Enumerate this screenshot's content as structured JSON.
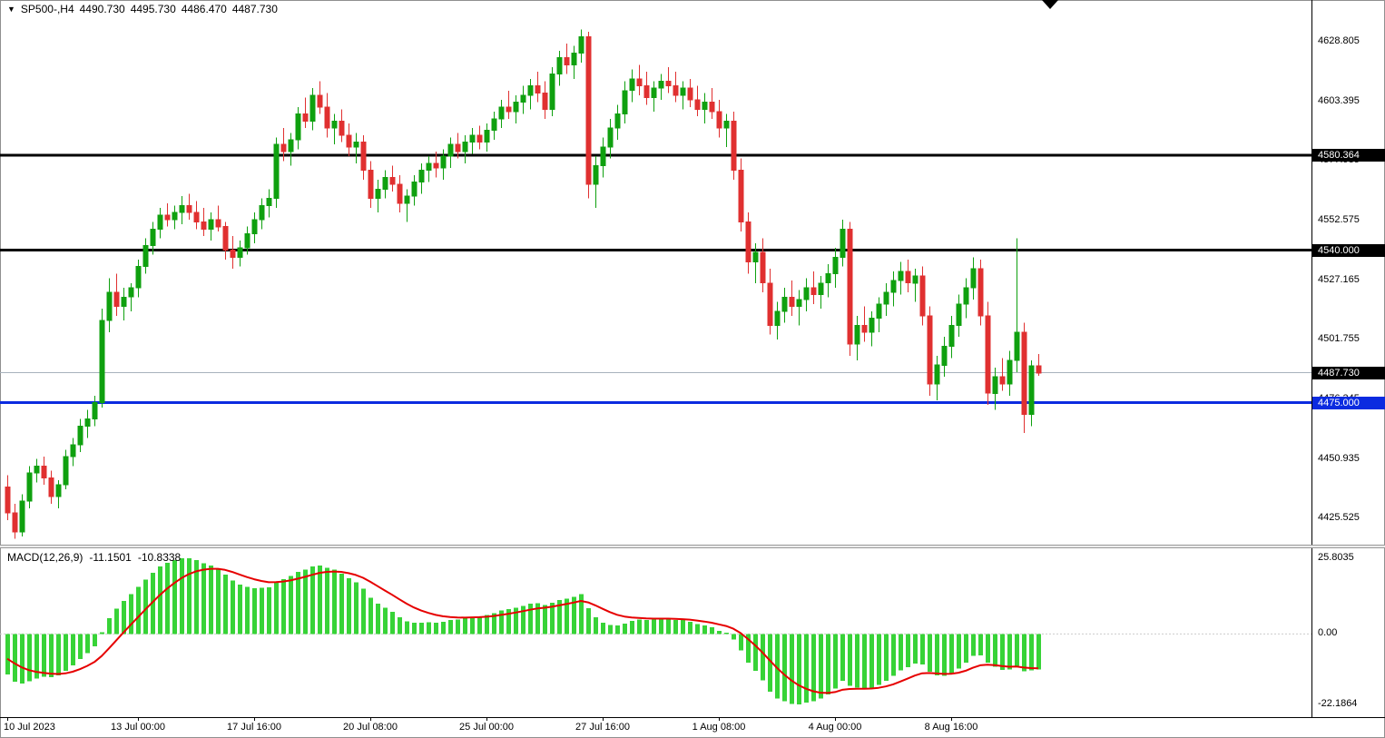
{
  "header": {
    "dropdown_icon": "▼",
    "symbol_timeframe": "SP500-,H4",
    "open": "4490.730",
    "high": "4495.730",
    "low": "4486.470",
    "close": "4487.730"
  },
  "price_axis": {
    "ticks": [
      {
        "label": "4628.805",
        "price": 4628.805
      },
      {
        "label": "4603.395",
        "price": 4603.395
      },
      {
        "label": "4577.985",
        "price": 4577.985
      },
      {
        "label": "4552.575",
        "price": 4552.575
      },
      {
        "label": "4527.165",
        "price": 4527.165
      },
      {
        "label": "4501.755",
        "price": 4501.755
      },
      {
        "label": "4476.345",
        "price": 4476.345
      },
      {
        "label": "4450.935",
        "price": 4450.935
      },
      {
        "label": "4425.525",
        "price": 4425.525
      }
    ],
    "badges": [
      {
        "label": "4580.364",
        "price": 4580.364,
        "bg": "#000000"
      },
      {
        "label": "4540.000",
        "price": 4540.0,
        "bg": "#000000"
      },
      {
        "label": "4487.730",
        "price": 4487.73,
        "bg": "#000000"
      },
      {
        "label": "4475.000",
        "price": 4475.0,
        "bg": "#0b2be0"
      }
    ]
  },
  "time_axis": {
    "labels": [
      {
        "text": "10 Jul 2023",
        "bar": 0
      },
      {
        "text": "13 Jul 00:00",
        "bar": 18
      },
      {
        "text": "17 Jul 16:00",
        "bar": 34
      },
      {
        "text": "20 Jul 08:00",
        "bar": 50
      },
      {
        "text": "25 Jul 00:00",
        "bar": 66
      },
      {
        "text": "27 Jul 16:00",
        "bar": 82
      },
      {
        "text": "1 Aug 08:00",
        "bar": 98
      },
      {
        "text": "4 Aug 00:00",
        "bar": 114
      },
      {
        "text": "8 Aug 16:00",
        "bar": 130
      }
    ]
  },
  "macd_panel": {
    "title": "MACD(12,26,9)",
    "macd_value": "-11.1501",
    "signal_value": "-10.8338",
    "axis_max_label": "25.8035",
    "axis_zero_label": "0.00",
    "axis_min_label": "-22.1864"
  },
  "colors": {
    "bull": "#0fa00f",
    "bear": "#e03030",
    "macd_hist": "#37d337",
    "signal": "#e60000",
    "hline_black": "#000000",
    "hline_blue": "#0b2be0",
    "current_price_line": "#a8b2bc",
    "axis_text": "#000000"
  },
  "chart_data": {
    "type": "candlestick",
    "title": "SP500- H4 candlestick chart with MACD(12,26,9) sub-panel",
    "ylim": [
      4414.5,
      4643.5
    ],
    "grid": false,
    "current_price": 4487.73,
    "hlines": [
      {
        "price": 4580.364,
        "color": "#000000",
        "width": 3,
        "name": "resistance-4580.364"
      },
      {
        "price": 4540.0,
        "color": "#000000",
        "width": 3,
        "name": "support-4540.000"
      },
      {
        "price": 4475.0,
        "color": "#0b2be0",
        "width": 3,
        "name": "support-4475.000"
      }
    ],
    "x_axis": {
      "first_bar_label": "10 Jul 2023",
      "bars_per_label": 16,
      "timeframe_hours": 4
    },
    "macd": {
      "fast": 12,
      "slow": 26,
      "signal": 9,
      "warmup_closes": [
        4494,
        4490,
        4486,
        4481,
        4477,
        4471,
        4466,
        4468,
        4461,
        4455,
        4450,
        4446
      ]
    },
    "candles_ohlc": [
      [
        4439,
        4444,
        4425,
        4428
      ],
      [
        4428,
        4432,
        4417,
        4420
      ],
      [
        4420,
        4436,
        4418,
        4433
      ],
      [
        4433,
        4448,
        4430,
        4445
      ],
      [
        4445,
        4451,
        4441,
        4448
      ],
      [
        4448,
        4452,
        4440,
        4443
      ],
      [
        4443,
        4446,
        4432,
        4435
      ],
      [
        4435,
        4442,
        4430,
        4440
      ],
      [
        4440,
        4455,
        4438,
        4452
      ],
      [
        4452,
        4460,
        4448,
        4457
      ],
      [
        4457,
        4468,
        4454,
        4465
      ],
      [
        4465,
        4472,
        4460,
        4468
      ],
      [
        4468,
        4478,
        4465,
        4475
      ],
      [
        4475,
        4515,
        4473,
        4510
      ],
      [
        4510,
        4528,
        4505,
        4522
      ],
      [
        4522,
        4530,
        4512,
        4516
      ],
      [
        4516,
        4524,
        4510,
        4520
      ],
      [
        4520,
        4526,
        4514,
        4524
      ],
      [
        4524,
        4536,
        4520,
        4533
      ],
      [
        4533,
        4545,
        4530,
        4542
      ],
      [
        4542,
        4552,
        4538,
        4549
      ],
      [
        4549,
        4558,
        4545,
        4555
      ],
      [
        4555,
        4560,
        4550,
        4553
      ],
      [
        4553,
        4559,
        4549,
        4556
      ],
      [
        4556,
        4563,
        4551,
        4559
      ],
      [
        4559,
        4564,
        4553,
        4556
      ],
      [
        4556,
        4561,
        4549,
        4552
      ],
      [
        4552,
        4558,
        4546,
        4549
      ],
      [
        4549,
        4556,
        4544,
        4553
      ],
      [
        4553,
        4559,
        4548,
        4550
      ],
      [
        4550,
        4552,
        4536,
        4540
      ],
      [
        4540,
        4546,
        4532,
        4537
      ],
      [
        4537,
        4544,
        4533,
        4541
      ],
      [
        4541,
        4550,
        4538,
        4547
      ],
      [
        4547,
        4556,
        4543,
        4553
      ],
      [
        4553,
        4562,
        4549,
        4559
      ],
      [
        4559,
        4566,
        4554,
        4562
      ],
      [
        4562,
        4588,
        4558,
        4585
      ],
      [
        4585,
        4592,
        4578,
        4582
      ],
      [
        4582,
        4590,
        4576,
        4587
      ],
      [
        4587,
        4601,
        4583,
        4598
      ],
      [
        4598,
        4605,
        4592,
        4595
      ],
      [
        4595,
        4609,
        4591,
        4606
      ],
      [
        4606,
        4612,
        4598,
        4601
      ],
      [
        4601,
        4607,
        4588,
        4592
      ],
      [
        4592,
        4598,
        4585,
        4595
      ],
      [
        4595,
        4600,
        4586,
        4589
      ],
      [
        4589,
        4594,
        4580,
        4584
      ],
      [
        4584,
        4590,
        4577,
        4586
      ],
      [
        4586,
        4589,
        4570,
        4574
      ],
      [
        4574,
        4578,
        4558,
        4562
      ],
      [
        4562,
        4570,
        4556,
        4566
      ],
      [
        4566,
        4574,
        4562,
        4571
      ],
      [
        4571,
        4576,
        4565,
        4568
      ],
      [
        4568,
        4572,
        4556,
        4560
      ],
      [
        4560,
        4566,
        4552,
        4563
      ],
      [
        4563,
        4572,
        4559,
        4569
      ],
      [
        4569,
        4577,
        4564,
        4574
      ],
      [
        4574,
        4580,
        4569,
        4577
      ],
      [
        4577,
        4582,
        4571,
        4575
      ],
      [
        4575,
        4583,
        4570,
        4580
      ],
      [
        4580,
        4588,
        4575,
        4585
      ],
      [
        4585,
        4590,
        4579,
        4582
      ],
      [
        4582,
        4589,
        4577,
        4586
      ],
      [
        4586,
        4592,
        4581,
        4589
      ],
      [
        4589,
        4593,
        4583,
        4586
      ],
      [
        4586,
        4594,
        4582,
        4591
      ],
      [
        4591,
        4599,
        4587,
        4596
      ],
      [
        4596,
        4604,
        4592,
        4601
      ],
      [
        4601,
        4608,
        4596,
        4599
      ],
      [
        4599,
        4606,
        4594,
        4603
      ],
      [
        4603,
        4610,
        4598,
        4606
      ],
      [
        4606,
        4613,
        4600,
        4610
      ],
      [
        4610,
        4616,
        4603,
        4607
      ],
      [
        4607,
        4612,
        4596,
        4600
      ],
      [
        4600,
        4618,
        4597,
        4615
      ],
      [
        4615,
        4625,
        4610,
        4622
      ],
      [
        4622,
        4628,
        4615,
        4619
      ],
      [
        4619,
        4627,
        4613,
        4624
      ],
      [
        4624,
        4634,
        4620,
        4631
      ],
      [
        4631,
        4633,
        4562,
        4568
      ],
      [
        4568,
        4580,
        4558,
        4576
      ],
      [
        4576,
        4588,
        4571,
        4584
      ],
      [
        4584,
        4596,
        4579,
        4592
      ],
      [
        4592,
        4602,
        4587,
        4598
      ],
      [
        4598,
        4612,
        4594,
        4608
      ],
      [
        4608,
        4617,
        4603,
        4613
      ],
      [
        4613,
        4619,
        4606,
        4610
      ],
      [
        4610,
        4616,
        4602,
        4605
      ],
      [
        4605,
        4612,
        4599,
        4609
      ],
      [
        4609,
        4615,
        4604,
        4612
      ],
      [
        4612,
        4618,
        4607,
        4610
      ],
      [
        4610,
        4616,
        4603,
        4606
      ],
      [
        4606,
        4612,
        4600,
        4609
      ],
      [
        4609,
        4613,
        4601,
        4604
      ],
      [
        4604,
        4610,
        4597,
        4600
      ],
      [
        4600,
        4607,
        4594,
        4603
      ],
      [
        4603,
        4609,
        4596,
        4599
      ],
      [
        4599,
        4604,
        4588,
        4592
      ],
      [
        4592,
        4598,
        4584,
        4595
      ],
      [
        4595,
        4599,
        4570,
        4574
      ],
      [
        4574,
        4579,
        4548,
        4552
      ],
      [
        4552,
        4556,
        4530,
        4535
      ],
      [
        4535,
        4543,
        4526,
        4539
      ],
      [
        4539,
        4545,
        4522,
        4526
      ],
      [
        4526,
        4532,
        4504,
        4508
      ],
      [
        4508,
        4518,
        4502,
        4514
      ],
      [
        4514,
        4524,
        4509,
        4520
      ],
      [
        4520,
        4527,
        4512,
        4516
      ],
      [
        4516,
        4523,
        4508,
        4519
      ],
      [
        4519,
        4528,
        4514,
        4524
      ],
      [
        4524,
        4531,
        4517,
        4521
      ],
      [
        4521,
        4529,
        4515,
        4526
      ],
      [
        4526,
        4534,
        4520,
        4530
      ],
      [
        4530,
        4541,
        4524,
        4537
      ],
      [
        4537,
        4553,
        4533,
        4549
      ],
      [
        4549,
        4552,
        4495,
        4500
      ],
      [
        4500,
        4512,
        4493,
        4508
      ],
      [
        4508,
        4516,
        4501,
        4505
      ],
      [
        4505,
        4514,
        4499,
        4511
      ],
      [
        4511,
        4520,
        4505,
        4517
      ],
      [
        4517,
        4526,
        4512,
        4522
      ],
      [
        4522,
        4531,
        4516,
        4527
      ],
      [
        4527,
        4535,
        4521,
        4531
      ],
      [
        4531,
        4536,
        4522,
        4526
      ],
      [
        4526,
        4532,
        4518,
        4529
      ],
      [
        4529,
        4533,
        4508,
        4512
      ],
      [
        4512,
        4516,
        4478,
        4483
      ],
      [
        4483,
        4495,
        4476,
        4491
      ],
      [
        4491,
        4503,
        4486,
        4499
      ],
      [
        4499,
        4512,
        4494,
        4508
      ],
      [
        4508,
        4521,
        4503,
        4517
      ],
      [
        4517,
        4528,
        4511,
        4524
      ],
      [
        4524,
        4537,
        4519,
        4532
      ],
      [
        4532,
        4536,
        4508,
        4512
      ],
      [
        4512,
        4518,
        4474,
        4479
      ],
      [
        4479,
        4490,
        4472,
        4486
      ],
      [
        4486,
        4494,
        4480,
        4483
      ],
      [
        4483,
        4497,
        4478,
        4493
      ],
      [
        4493,
        4545,
        4488,
        4505
      ],
      [
        4505,
        4509,
        4462,
        4470
      ],
      [
        4470,
        4493,
        4465,
        4490.7
      ],
      [
        4490.7,
        4495.7,
        4486.5,
        4487.7
      ]
    ]
  }
}
